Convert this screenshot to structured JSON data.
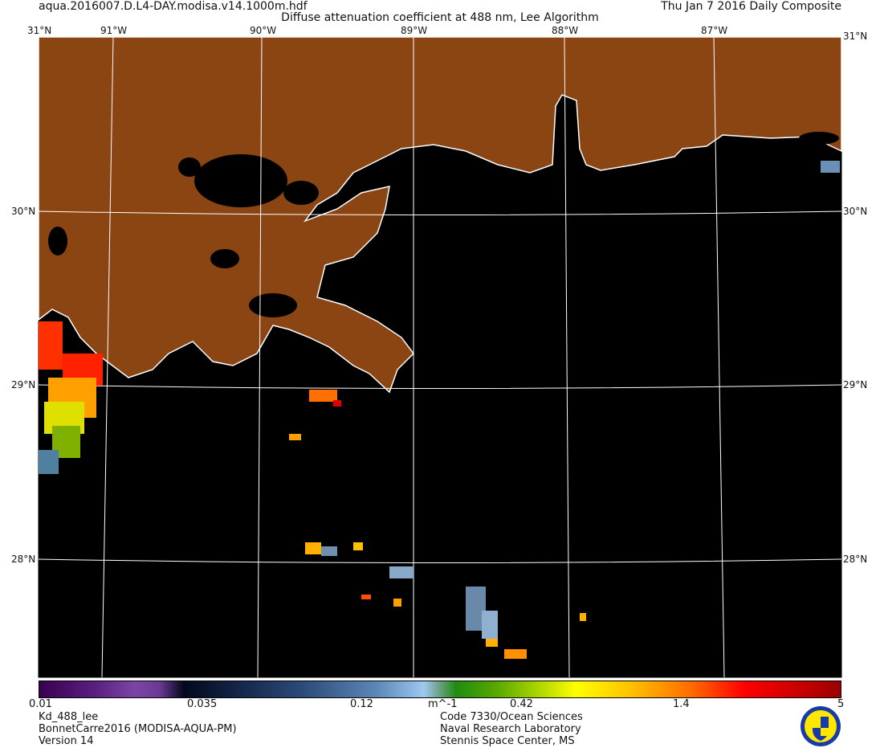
{
  "header": {
    "filename": "aqua.2016007.D.L4-DAY.modisa.v14.1000m.hdf",
    "date": "Thu Jan  7 2016 Daily Composite",
    "title": "Diffuse attenuation coefficient at 488 nm, Lee Algorithm"
  },
  "map": {
    "lon_labels": [
      "91°W",
      "90°W",
      "89°W",
      "88°W",
      "87°W"
    ],
    "lat_labels": [
      "30°N",
      "29°N",
      "28°N"
    ],
    "corner_top_left": "31°N",
    "corner_top_right": "31°N",
    "colors": {
      "land": "#8b4513",
      "water": "#000000",
      "coastline": "#ffffff",
      "grid": "#ffffff"
    }
  },
  "colorbar": {
    "ticks": [
      "0.01",
      "0.035",
      "0.12",
      "0.42",
      "1.4",
      "5"
    ],
    "unit": "m^-1",
    "scale": "log",
    "range": [
      0.01,
      5
    ]
  },
  "footer": {
    "left": [
      "Kd_488_lee",
      "BonnetCarre2016 (MODISA-AQUA-PM)",
      "Version 14"
    ],
    "right": [
      "Code 7330/Ocean Sciences",
      "Naval Research Laboratory",
      "Stennis Space Center, MS"
    ],
    "logo": "Naval Research Laboratory seal"
  }
}
